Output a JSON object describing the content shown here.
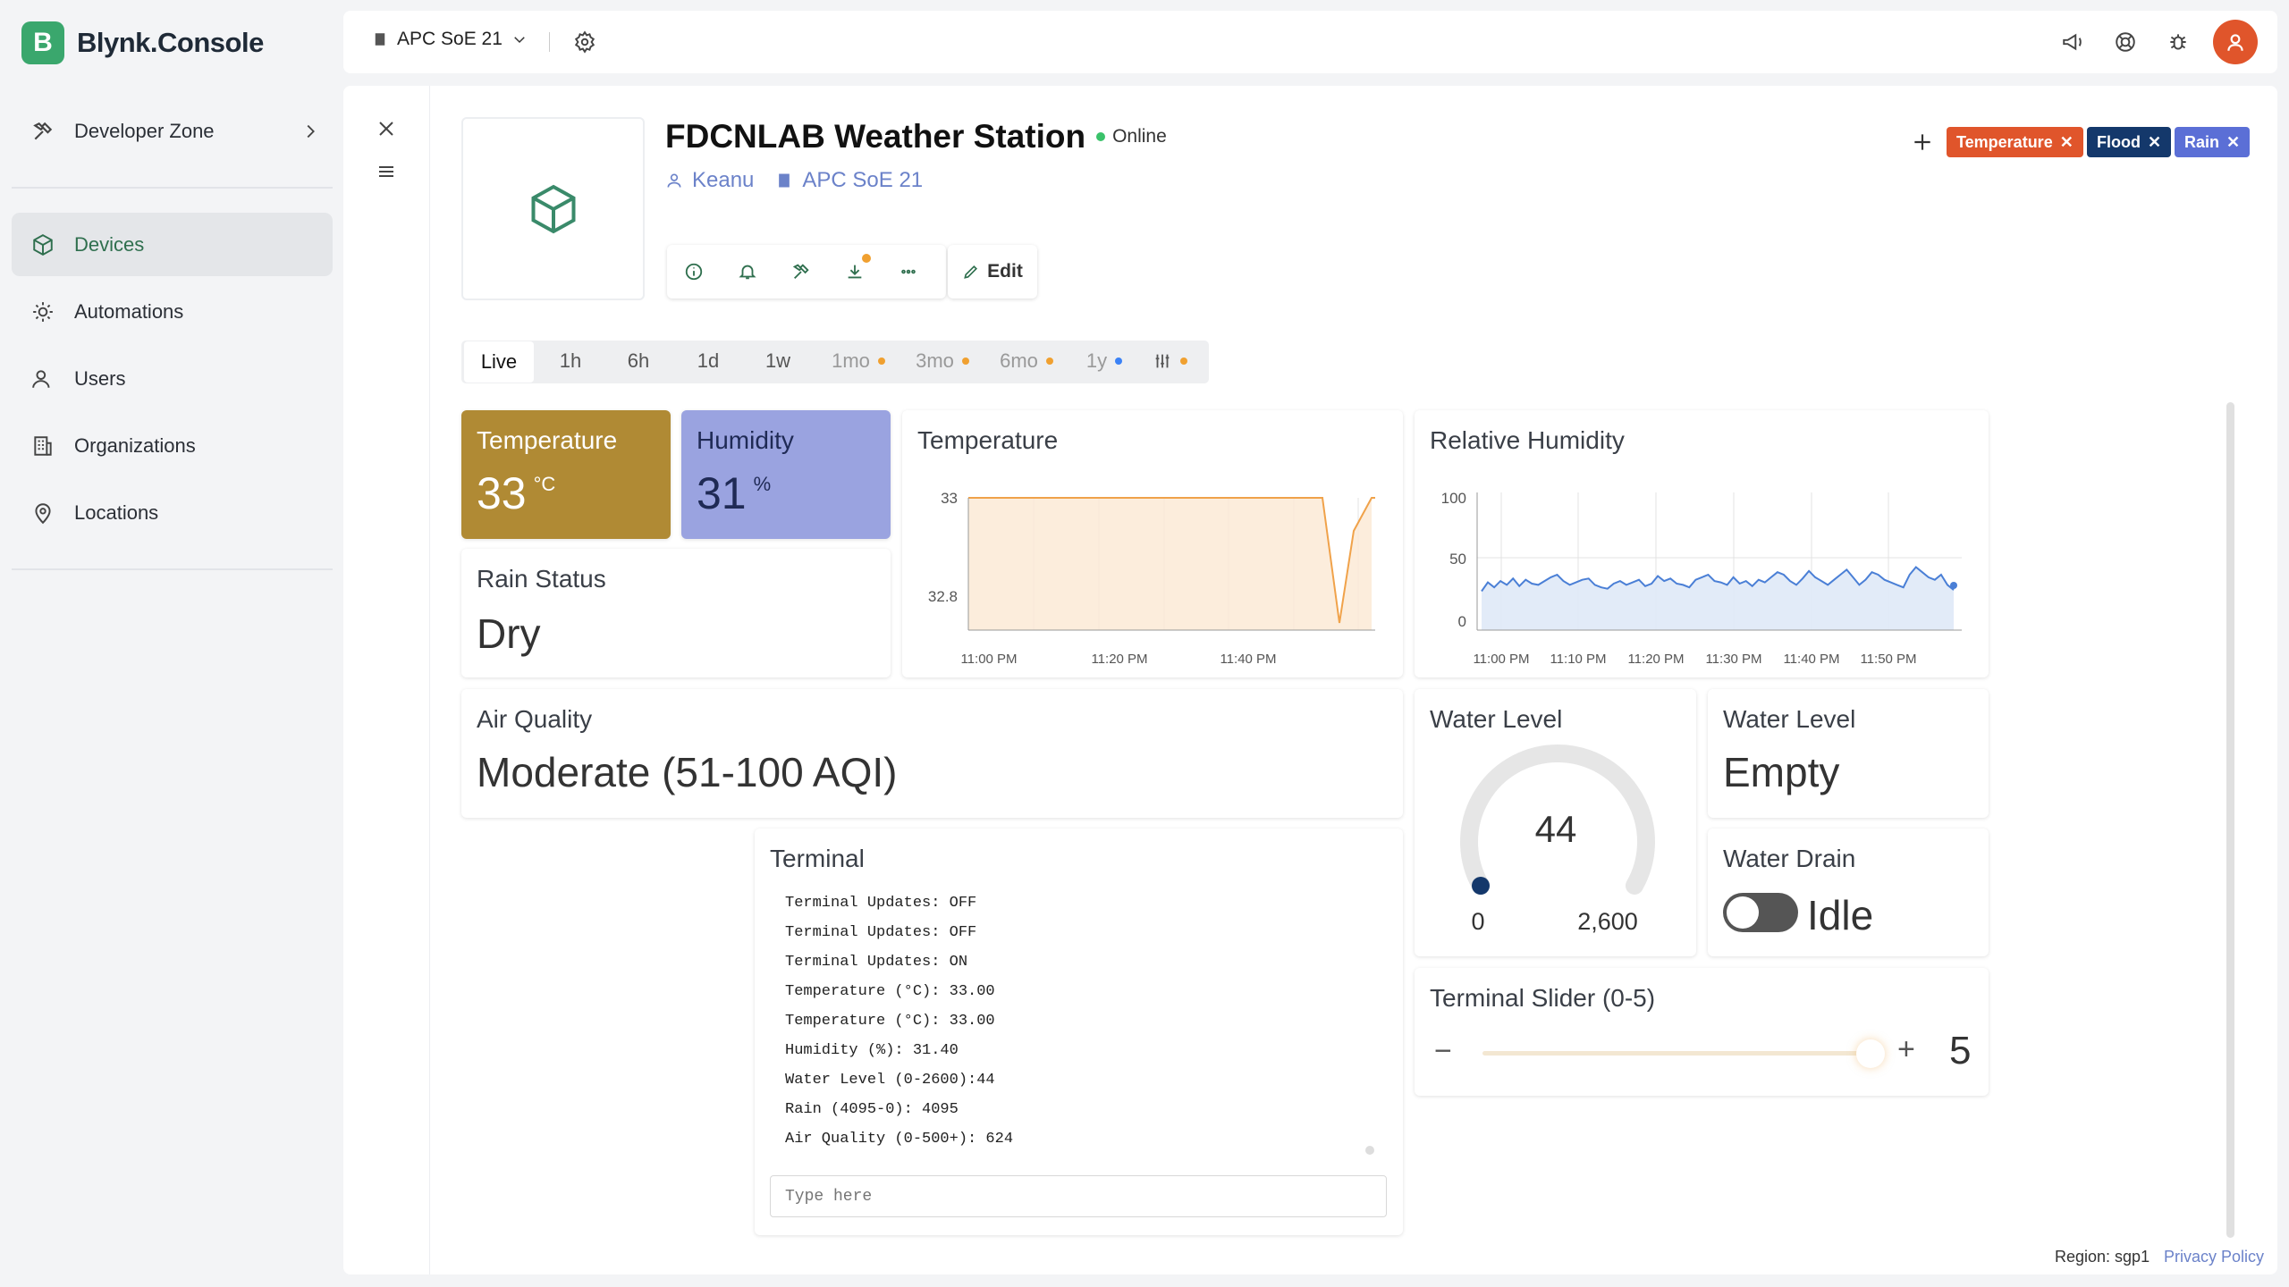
{
  "app": {
    "name": "Blynk.Console",
    "logo_letter": "B"
  },
  "sidebar": {
    "developer_zone": "Developer Zone",
    "items": [
      {
        "label": "Devices",
        "icon": "cube-icon",
        "active": true
      },
      {
        "label": "Automations",
        "icon": "automation-icon"
      },
      {
        "label": "Users",
        "icon": "users-icon"
      },
      {
        "label": "Organizations",
        "icon": "building-icon"
      },
      {
        "label": "Locations",
        "icon": "location-pin-icon"
      }
    ]
  },
  "topbar": {
    "org": "APC SoE 21"
  },
  "device": {
    "name": "FDCNLAB Weather Station",
    "status": "Online",
    "owner": "Keanu",
    "org": "APC SoE 21",
    "edit_label": "Edit"
  },
  "tags": [
    {
      "label": "Temperature",
      "color": "#e0552b"
    },
    {
      "label": "Flood",
      "color": "#14386b"
    },
    {
      "label": "Rain",
      "color": "#5b6fd6"
    }
  ],
  "time_tabs": [
    {
      "label": "Live",
      "active": true
    },
    {
      "label": "1h"
    },
    {
      "label": "6h"
    },
    {
      "label": "1d"
    },
    {
      "label": "1w"
    },
    {
      "label": "1mo",
      "dot": "#f0a030"
    },
    {
      "label": "3mo",
      "dot": "#f0a030"
    },
    {
      "label": "6mo",
      "dot": "#f0a030"
    },
    {
      "label": "1y",
      "dot": "#3b82f6"
    }
  ],
  "widgets": {
    "temperature_value": {
      "title": "Temperature",
      "value": "33",
      "unit": "°C",
      "color": "#b08a34"
    },
    "humidity_value": {
      "title": "Humidity",
      "value": "31",
      "unit": "%",
      "color": "#9aa3e0"
    },
    "rain_status": {
      "title": "Rain Status",
      "value": "Dry"
    },
    "air_quality": {
      "title": "Air Quality",
      "value": "Moderate (51-100 AQI)"
    },
    "water_level_gauge": {
      "title": "Water Level",
      "value": "44",
      "min": "0",
      "max": "2,600"
    },
    "water_level_text": {
      "title": "Water Level",
      "value": "Empty"
    },
    "water_drain": {
      "title": "Water Drain",
      "value": "Idle"
    },
    "terminal_slider": {
      "title": "Terminal Slider (0-5)",
      "value": "5",
      "minus": "−",
      "plus": "+"
    },
    "terminal": {
      "title": "Terminal",
      "lines": [
        "Terminal Updates: OFF",
        "Terminal Updates: OFF",
        "Terminal Updates: ON",
        "Temperature (°C): 33.00",
        "Temperature (°C): 33.00",
        "Humidity (%): 31.40",
        "Water Level (0-2600):44",
        "Rain (4095-0): 4095",
        "Air Quality (0-500+): 624"
      ],
      "input_placeholder": "Type here"
    }
  },
  "chart_data": [
    {
      "type": "area",
      "title": "Temperature",
      "y_ticks": [
        "33",
        "32.8"
      ],
      "x_ticks": [
        "11:00 PM",
        "11:20 PM",
        "11:40 PM"
      ],
      "color": "#f0a24a"
    },
    {
      "type": "area",
      "title": "Relative Humidity",
      "y_ticks": [
        "100",
        "50",
        "0"
      ],
      "x_ticks": [
        "11:00 PM",
        "11:10 PM",
        "11:20 PM",
        "11:30 PM",
        "11:40 PM",
        "11:50 PM"
      ],
      "ylim": [
        0,
        100
      ],
      "values": [
        25,
        32,
        28,
        33,
        30,
        35,
        29,
        34,
        31,
        30,
        33,
        36,
        38,
        33,
        30,
        32,
        34,
        35,
        30,
        28,
        27,
        31,
        33,
        30,
        32,
        34,
        29,
        31,
        37,
        33,
        35,
        31,
        30,
        28,
        34,
        36,
        38,
        33,
        32,
        30,
        36,
        31,
        33,
        29,
        34,
        32,
        36,
        40,
        38,
        33,
        30,
        35,
        41,
        36,
        33,
        30,
        34,
        38,
        42,
        36,
        30,
        34,
        40,
        38,
        34,
        32,
        30,
        28,
        38,
        44,
        40,
        36,
        34,
        38,
        30,
        26
      ],
      "color": "#4a7fd6"
    }
  ],
  "footer": {
    "region": "Region: sgp1",
    "privacy": "Privacy Policy"
  }
}
